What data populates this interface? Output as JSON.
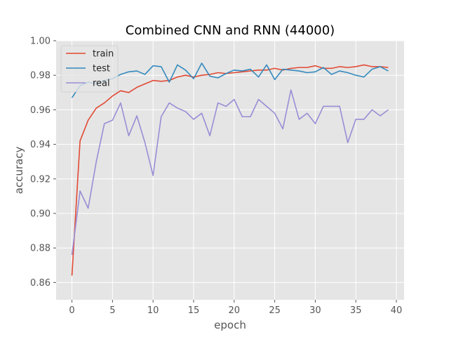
{
  "chart_data": {
    "type": "line",
    "title": "Combined CNN and RNN (44000)",
    "xlabel": "epoch",
    "ylabel": "accuracy",
    "xlim": [
      -1.95,
      40.95
    ],
    "ylim": [
      0.85,
      1.0
    ],
    "xticks": [
      0,
      5,
      10,
      15,
      20,
      25,
      30,
      35,
      40
    ],
    "yticks": [
      0.86,
      0.88,
      0.9,
      0.92,
      0.94,
      0.96,
      0.98,
      1.0
    ],
    "xtick_labels": [
      "0",
      "5",
      "10",
      "15",
      "20",
      "25",
      "30",
      "35",
      "40"
    ],
    "ytick_labels": [
      "0.86",
      "0.88",
      "0.90",
      "0.92",
      "0.94",
      "0.96",
      "0.98",
      "1.00"
    ],
    "grid": true,
    "legend_position": "top-left",
    "background": "#E5E5E5",
    "x": [
      0,
      1,
      2,
      3,
      4,
      5,
      6,
      7,
      8,
      9,
      10,
      11,
      12,
      13,
      14,
      15,
      16,
      17,
      18,
      19,
      20,
      21,
      22,
      23,
      24,
      25,
      26,
      27,
      28,
      29,
      30,
      31,
      32,
      33,
      34,
      35,
      36,
      37,
      38,
      39
    ],
    "series": [
      {
        "name": "train",
        "color": "#E24A33",
        "values": [
          0.864,
          0.942,
          0.954,
          0.961,
          0.964,
          0.968,
          0.971,
          0.97,
          0.973,
          0.975,
          0.977,
          0.9765,
          0.977,
          0.979,
          0.98,
          0.979,
          0.98,
          0.9805,
          0.9815,
          0.981,
          0.9815,
          0.982,
          0.9825,
          0.983,
          0.983,
          0.984,
          0.983,
          0.984,
          0.9845,
          0.9845,
          0.9855,
          0.984,
          0.984,
          0.985,
          0.9845,
          0.985,
          0.986,
          0.985,
          0.985,
          0.9845
        ]
      },
      {
        "name": "test",
        "color": "#348ABD",
        "values": [
          0.967,
          0.974,
          0.976,
          0.975,
          0.977,
          0.978,
          0.9805,
          0.982,
          0.9825,
          0.9805,
          0.9855,
          0.985,
          0.976,
          0.986,
          0.983,
          0.978,
          0.987,
          0.9795,
          0.9785,
          0.981,
          0.983,
          0.9825,
          0.9835,
          0.979,
          0.986,
          0.9775,
          0.9835,
          0.983,
          0.9825,
          0.9815,
          0.982,
          0.9845,
          0.9805,
          0.9825,
          0.9815,
          0.98,
          0.979,
          0.9835,
          0.985,
          0.9825
        ]
      },
      {
        "name": "real",
        "color": "#988ED5",
        "values": [
          0.876,
          0.913,
          0.903,
          0.93,
          0.952,
          0.954,
          0.964,
          0.945,
          0.9565,
          0.941,
          0.922,
          0.956,
          0.964,
          0.961,
          0.959,
          0.9545,
          0.958,
          0.945,
          0.964,
          0.962,
          0.966,
          0.956,
          0.956,
          0.966,
          0.962,
          0.958,
          0.949,
          0.9715,
          0.9545,
          0.958,
          0.952,
          0.962,
          0.962,
          0.962,
          0.941,
          0.9545,
          0.9545,
          0.96,
          0.9565,
          0.96
        ]
      }
    ]
  }
}
